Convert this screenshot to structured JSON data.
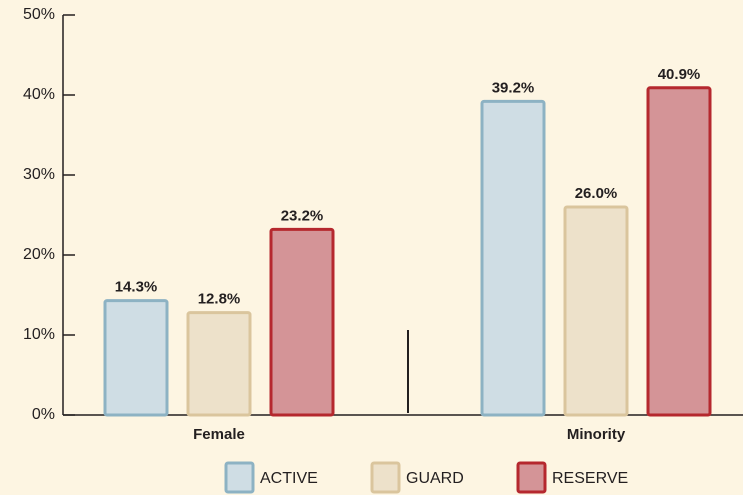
{
  "chart_data": {
    "type": "bar",
    "categories": [
      "Female",
      "Minority"
    ],
    "series": [
      {
        "name": "ACTIVE",
        "color": "#cfdde4",
        "edgecolor": "#8db2c3",
        "values": [
          14.3,
          39.2
        ],
        "value_labels": [
          "14.3%",
          "39.2%"
        ]
      },
      {
        "name": "GUARD",
        "color": "#ede1ca",
        "edgecolor": "#dac59d",
        "values": [
          12.8,
          26.0
        ],
        "value_labels": [
          "12.8%",
          "26.0%"
        ]
      },
      {
        "name": "RESERVE",
        "color": "#d49497",
        "edgecolor": "#b5282e",
        "values": [
          23.2,
          40.9
        ],
        "value_labels": [
          "23.2%",
          "40.9%"
        ]
      }
    ],
    "ylim": [
      0,
      50
    ],
    "yticks": [
      {
        "value": 0,
        "label": "0%"
      },
      {
        "value": 10,
        "label": "10%"
      },
      {
        "value": 20,
        "label": "20%"
      },
      {
        "value": 30,
        "label": "30%"
      },
      {
        "value": 40,
        "label": "40%"
      },
      {
        "value": 50,
        "label": "50%"
      }
    ],
    "legend": "bottom"
  }
}
